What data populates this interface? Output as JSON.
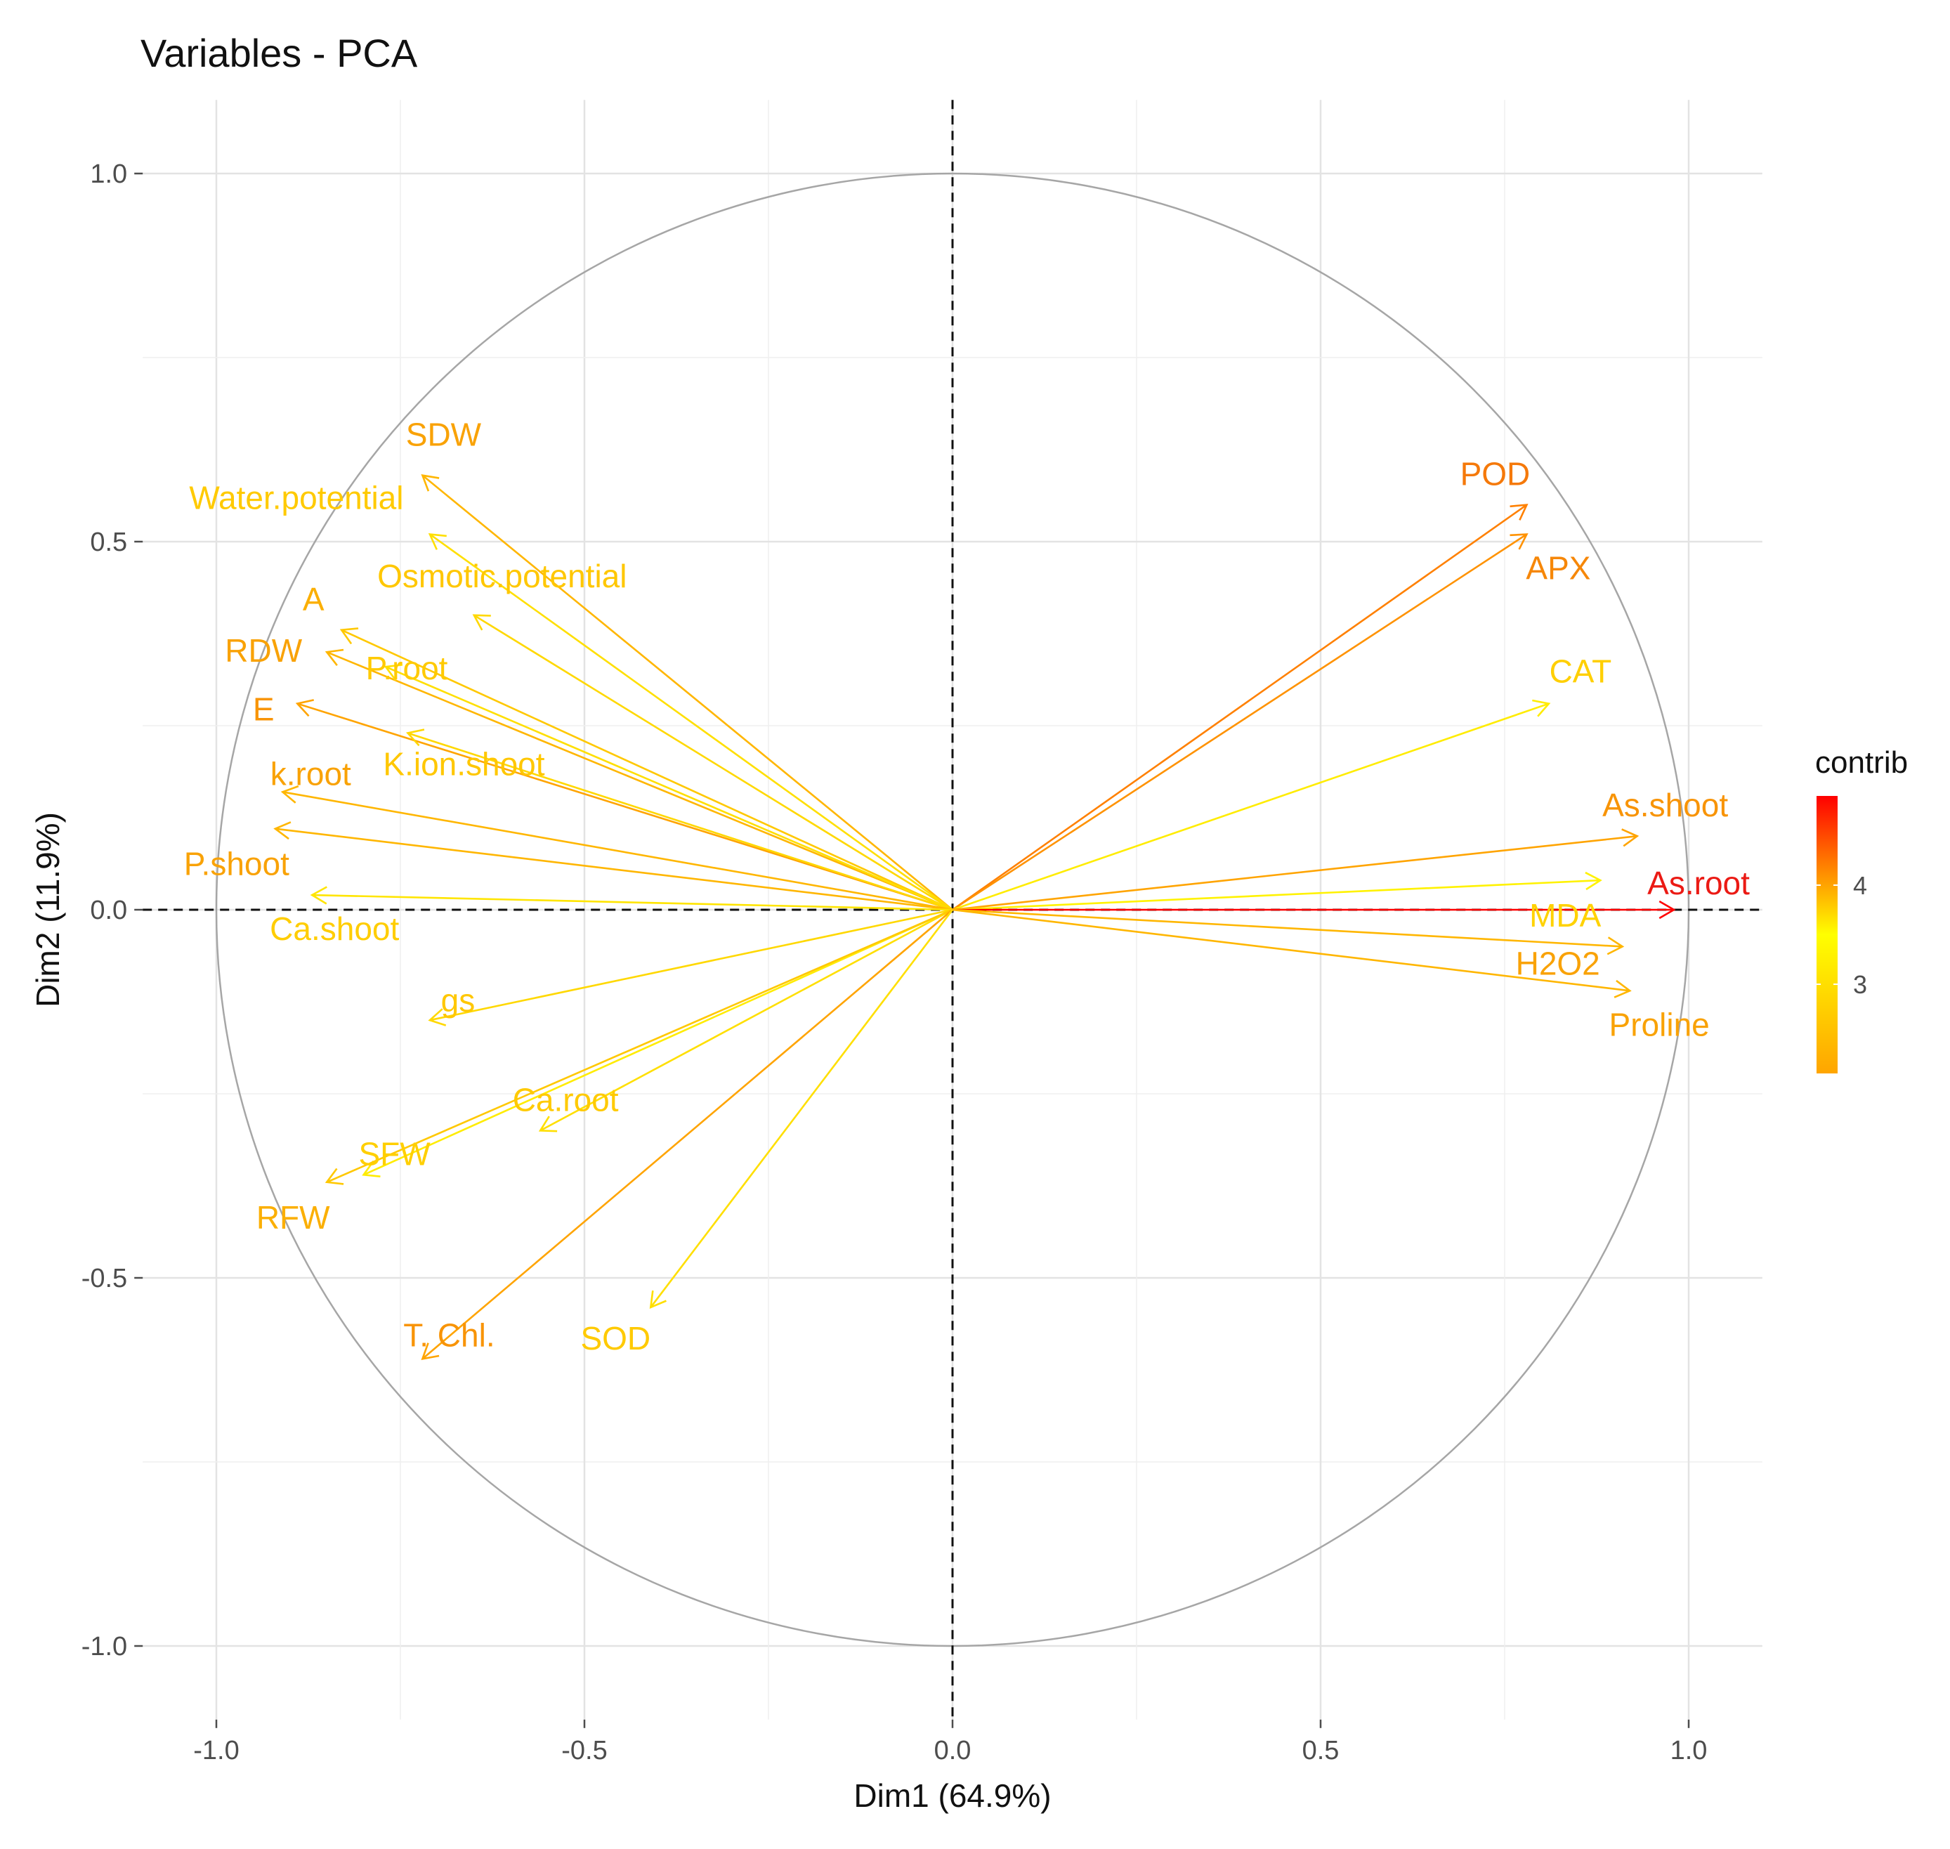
{
  "chart_data": {
    "type": "scatter",
    "subtype": "pca-variable-correlation-circle",
    "title": "Variables - PCA",
    "xlabel": "Dim1 (64.9%)",
    "ylabel": "Dim2 (11.9%)",
    "xlim": [
      -1.1,
      1.1
    ],
    "ylim": [
      -1.1,
      1.1
    ],
    "x_ticks": [
      -1.0,
      -0.5,
      0.0,
      0.5,
      1.0
    ],
    "y_ticks": [
      -1.0,
      -0.5,
      0.0,
      0.5,
      1.0
    ],
    "x_tick_labels": [
      "-1.0",
      "-0.5",
      "0.0",
      "0.5",
      "1.0"
    ],
    "y_tick_labels": [
      "1.0",
      "0.5",
      "0.0",
      "-0.5",
      "-1.0"
    ],
    "grid": true,
    "reference_lines": "dashed lines at x = 0 and y = 0",
    "unit_circle": true,
    "legend": {
      "title": "contrib",
      "type": "gradient",
      "ticks": [
        3,
        4
      ],
      "tick_labels": [
        "3",
        "4"
      ],
      "range": [
        2.1,
        4.9
      ],
      "colors": [
        "#FFA500",
        "#FFFF00",
        "#FF0000"
      ],
      "placement": "right"
    },
    "variables": [
      {
        "name": "SDW",
        "x": -0.72,
        "y": 0.59,
        "contrib": 3.9
      },
      {
        "name": "Water.potential",
        "x": -0.71,
        "y": 0.51,
        "contrib": 3.0
      },
      {
        "name": "Osmotic.potential",
        "x": -0.65,
        "y": 0.4,
        "contrib": 2.9
      },
      {
        "name": "A",
        "x": -0.83,
        "y": 0.38,
        "contrib": 3.8
      },
      {
        "name": "RDW",
        "x": -0.85,
        "y": 0.35,
        "contrib": 3.9
      },
      {
        "name": "P.root",
        "x": -0.77,
        "y": 0.33,
        "contrib": 3.0
      },
      {
        "name": "E",
        "x": -0.89,
        "y": 0.28,
        "contrib": 4.0
      },
      {
        "name": "K.ion.shoot",
        "x": -0.74,
        "y": 0.24,
        "contrib": 2.9
      },
      {
        "name": "k.root",
        "x": -0.91,
        "y": 0.16,
        "contrib": 3.9
      },
      {
        "name": "P.shoot",
        "x": -0.92,
        "y": 0.11,
        "contrib": 3.9
      },
      {
        "name": "Ca.shoot",
        "x": -0.87,
        "y": 0.02,
        "contrib": 3.1
      },
      {
        "name": "gs",
        "x": -0.71,
        "y": -0.15,
        "contrib": 2.9
      },
      {
        "name": "Ca.root",
        "x": -0.56,
        "y": -0.3,
        "contrib": 3.0
      },
      {
        "name": "SFW",
        "x": -0.8,
        "y": -0.36,
        "contrib": 3.2
      },
      {
        "name": "RFW",
        "x": -0.85,
        "y": -0.37,
        "contrib": 3.8
      },
      {
        "name": "T. Chl.",
        "x": -0.72,
        "y": -0.61,
        "contrib": 4.0
      },
      {
        "name": "SOD",
        "x": -0.41,
        "y": -0.54,
        "contrib": 3.0
      },
      {
        "name": "POD",
        "x": 0.78,
        "y": 0.55,
        "contrib": 4.2
      },
      {
        "name": "APX",
        "x": 0.78,
        "y": 0.51,
        "contrib": 4.1
      },
      {
        "name": "CAT",
        "x": 0.81,
        "y": 0.28,
        "contrib": 3.2
      },
      {
        "name": "As.shoot",
        "x": 0.93,
        "y": 0.1,
        "contrib": 4.0
      },
      {
        "name": "MDA",
        "x": 0.88,
        "y": 0.04,
        "contrib": 3.3
      },
      {
        "name": "As.root",
        "x": 0.98,
        "y": 0.0,
        "contrib": 4.9
      },
      {
        "name": "H2O2",
        "x": 0.91,
        "y": -0.05,
        "contrib": 3.9
      },
      {
        "name": "Proline",
        "x": 0.92,
        "y": -0.11,
        "contrib": 3.9
      }
    ]
  }
}
